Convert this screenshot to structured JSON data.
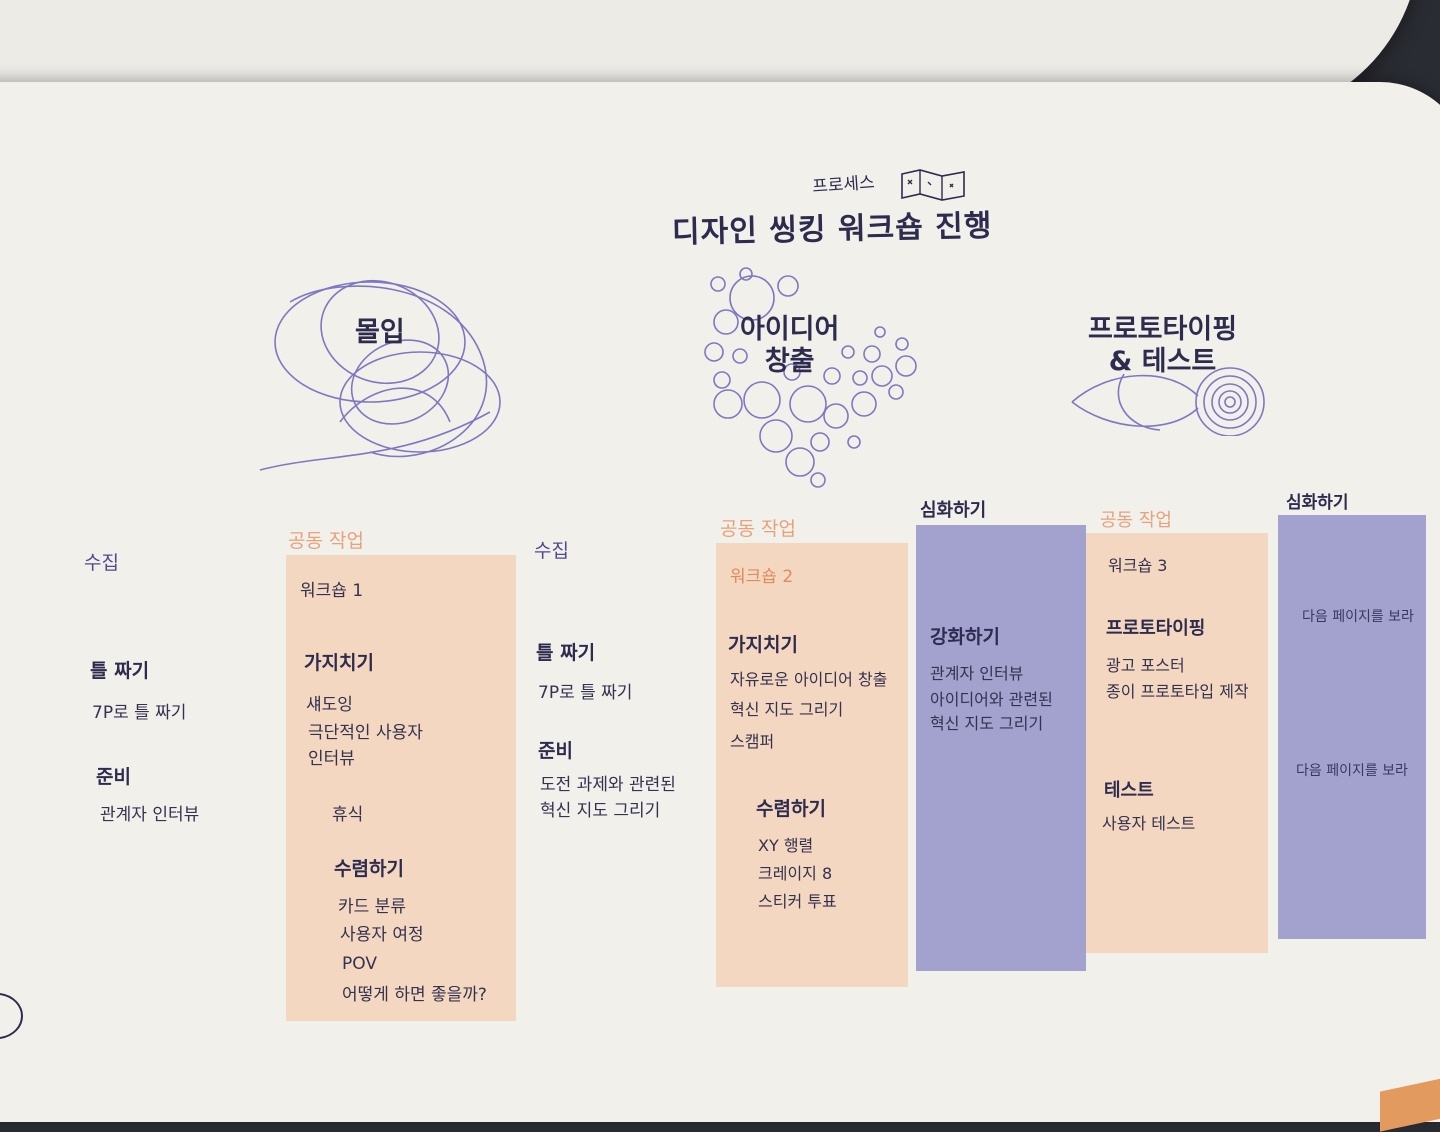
{
  "header": {
    "handwritten": "프로세스",
    "title": "디자인 씽킹 워크숍 진행",
    "map_icon": "map-icon"
  },
  "stages": {
    "immersion": "몰입",
    "ideation_line1": "아이디어",
    "ideation_line2": "창출",
    "proto_line1": "프로토타이핑",
    "proto_line2": "& 테스트"
  },
  "col1": {
    "collect": "수집",
    "frame": "틀 짜기",
    "frame_item": "7P로 틀 짜기",
    "prep": "준비",
    "prep_item": "관계자 인터뷰"
  },
  "col2": {
    "label": "공동 작업",
    "workshop": "워크숍 1",
    "prune": "가지치기",
    "prune_items": [
      "섀도잉",
      "극단적인 사용자",
      "인터뷰"
    ],
    "rest": "휴식",
    "converge": "수렴하기",
    "converge_items": [
      "카드 분류",
      "사용자 여정",
      "POV",
      "어떻게 하면 좋을까?"
    ]
  },
  "col3": {
    "collect": "수집",
    "frame": "틀 짜기",
    "frame_item": "7P로 틀 짜기",
    "prep": "준비",
    "prep_items": [
      "도전 과제와 관련된",
      "혁신 지도 그리기"
    ]
  },
  "col4": {
    "label": "공동 작업",
    "workshop": "워크숍 2",
    "prune": "가지치기",
    "prune_items": [
      "자유로운 아이디어 창출",
      "혁신 지도 그리기",
      "스캠퍼"
    ],
    "converge": "수렴하기",
    "converge_items": [
      "XY 행렬",
      "크레이지 8",
      "스티커 투표"
    ]
  },
  "col5": {
    "label": "심화하기",
    "heading": "강화하기",
    "items": [
      "관계자 인터뷰",
      "아이디어와 관련된",
      "혁신 지도 그리기"
    ]
  },
  "col6": {
    "label": "공동 작업",
    "workshop": "워크숍 3",
    "proto": "프로토타이핑",
    "proto_items": [
      "광고 포스터",
      "종이 프로토타입 제작"
    ],
    "test": "테스트",
    "test_item": "사용자 테스트"
  },
  "col7": {
    "label": "심화하기",
    "note1": "다음 페이지를 보라",
    "note2": "다음 페이지를 보라"
  },
  "colors": {
    "peach": "#f3d7c0",
    "lavender": "#a3a2cf",
    "navy": "#2e2c4e",
    "orange": "#e8a27a",
    "line": "#7f78c0"
  }
}
